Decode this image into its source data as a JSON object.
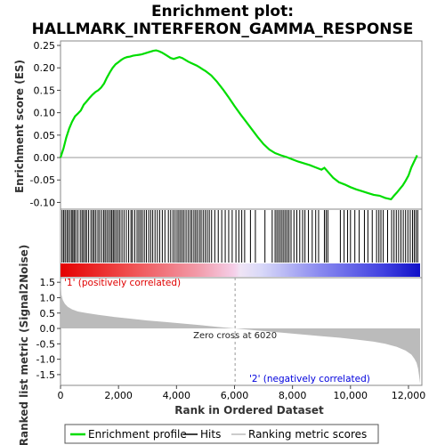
{
  "title_line1": "Enrichment plot:",
  "title_line2": "HALLMARK_INTERFERON_GAMMA_RESPONSE",
  "colors": {
    "es_line": "#00dd00",
    "hits": "#000000",
    "metric_fill": "#bbbbbb",
    "positive": "#e00000",
    "negative": "#0000dd"
  },
  "chart_data": [
    {
      "type": "line",
      "panel": "enrichment",
      "ylabel": "Enrichment score (ES)",
      "xlim": [
        0,
        12400
      ],
      "ylim": [
        -0.115,
        0.26
      ],
      "yticks": [
        "0.25",
        "0.20",
        "0.15",
        "0.10",
        "0.05",
        "0.00",
        "-0.05",
        "-0.10"
      ],
      "ytick_values": [
        0.25,
        0.2,
        0.15,
        0.1,
        0.05,
        0.0,
        -0.05,
        -0.1
      ],
      "series": [
        {
          "x": [
            0,
            100,
            200,
            300,
            400,
            500,
            600,
            700,
            800,
            900,
            1000,
            1100,
            1200,
            1300,
            1400,
            1500,
            1600,
            1700,
            1800,
            1900,
            2000,
            2100,
            2200,
            2300,
            2400,
            2500,
            2600,
            2700,
            2800,
            2900,
            3000,
            3100,
            3200,
            3300,
            3400,
            3500,
            3600,
            3700,
            3800,
            3900,
            4000,
            4100,
            4200,
            4300,
            4400,
            4500,
            4600,
            4700,
            4800,
            4900,
            5000,
            5200,
            5400,
            5600,
            5800,
            6000,
            6200,
            6400,
            6600,
            6800,
            7000,
            7200,
            7400,
            7600,
            7800,
            8000,
            8200,
            8400,
            8600,
            8800,
            9000,
            9100,
            9200,
            9400,
            9600,
            9800,
            10000,
            10200,
            10400,
            10600,
            10800,
            11000,
            11200,
            11400,
            11500,
            11600,
            11700,
            11800,
            11900,
            12000,
            12100,
            12200,
            12300
          ],
          "y": [
            0.0,
            0.02,
            0.045,
            0.065,
            0.08,
            0.092,
            0.098,
            0.105,
            0.118,
            0.125,
            0.133,
            0.14,
            0.146,
            0.15,
            0.156,
            0.165,
            0.178,
            0.19,
            0.2,
            0.208,
            0.213,
            0.218,
            0.222,
            0.224,
            0.225,
            0.227,
            0.228,
            0.229,
            0.23,
            0.232,
            0.234,
            0.236,
            0.238,
            0.239,
            0.237,
            0.234,
            0.23,
            0.226,
            0.222,
            0.22,
            0.222,
            0.224,
            0.222,
            0.218,
            0.214,
            0.211,
            0.208,
            0.205,
            0.201,
            0.197,
            0.193,
            0.183,
            0.169,
            0.152,
            0.134,
            0.115,
            0.097,
            0.08,
            0.063,
            0.046,
            0.03,
            0.018,
            0.01,
            0.005,
            0.001,
            -0.004,
            -0.009,
            -0.013,
            -0.017,
            -0.022,
            -0.027,
            -0.023,
            -0.03,
            -0.045,
            -0.055,
            -0.06,
            -0.066,
            -0.071,
            -0.075,
            -0.079,
            -0.083,
            -0.085,
            -0.09,
            -0.093,
            -0.085,
            -0.078,
            -0.07,
            -0.062,
            -0.052,
            -0.04,
            -0.022,
            -0.008,
            0.005
          ]
        }
      ]
    },
    {
      "type": "scatter",
      "panel": "hits",
      "xlim": [
        0,
        12400
      ],
      "hit_positions": [
        55,
        110,
        160,
        220,
        270,
        330,
        390,
        430,
        480,
        530,
        600,
        680,
        740,
        790,
        850,
        900,
        970,
        1050,
        1110,
        1160,
        1220,
        1290,
        1350,
        1420,
        1490,
        1540,
        1600,
        1660,
        1720,
        1770,
        1820,
        1870,
        1930,
        1990,
        2050,
        2120,
        2190,
        2270,
        2350,
        2430,
        2480,
        2560,
        2640,
        2700,
        2760,
        2820,
        2890,
        2960,
        3040,
        3110,
        3180,
        3260,
        3340,
        3420,
        3510,
        3600,
        3720,
        3800,
        3880,
        3950,
        4020,
        4080,
        4140,
        4200,
        4260,
        4330,
        4400,
        4470,
        4530,
        4600,
        4660,
        4720,
        4790,
        4850,
        4920,
        4990,
        5060,
        5130,
        5210,
        5320,
        5440,
        5560,
        5680,
        5800,
        5920,
        6050,
        6150,
        6250,
        6350,
        6550,
        6720,
        7050,
        7300,
        7400,
        7460,
        7520,
        7580,
        7640,
        7700,
        7760,
        7820,
        7880,
        7950,
        8050,
        8150,
        8250,
        8350,
        8430,
        8550,
        8680,
        8800,
        8900,
        9100,
        9160,
        9220,
        9650,
        9780,
        9900,
        10000,
        10150,
        10300,
        10480,
        10600,
        10750,
        10900,
        10980,
        11050,
        11130,
        11280,
        11420,
        11500,
        11580,
        11660,
        11740,
        11820,
        11900,
        11980,
        12060,
        12140,
        12200,
        12260,
        12320
      ]
    },
    {
      "type": "area",
      "panel": "ranked_metric",
      "ylabel": "Ranked list metric (Signal2Noise)",
      "xlabel": "Rank in Ordered Dataset",
      "xlim": [
        0,
        12400
      ],
      "ylim": [
        -1.85,
        1.65
      ],
      "xticks": [
        "0",
        "2,000",
        "4,000",
        "6,000",
        "8,000",
        "10,000",
        "12,000"
      ],
      "xtick_values": [
        0,
        2000,
        4000,
        6000,
        8000,
        10000,
        12000
      ],
      "yticks": [
        "1.5",
        "1.0",
        "0.5",
        "0.0",
        "-0.5",
        "-1.0",
        "-1.5"
      ],
      "ytick_values": [
        1.5,
        1.0,
        0.5,
        0.0,
        -0.5,
        -1.0,
        -1.5
      ],
      "x": [
        0,
        30,
        80,
        150,
        250,
        400,
        600,
        900,
        1300,
        1800,
        2400,
        3000,
        3600,
        4200,
        4800,
        5400,
        6020,
        6600,
        7200,
        7800,
        8400,
        9000,
        9600,
        10200,
        10800,
        11200,
        11600,
        11900,
        12100,
        12200,
        12280,
        12330,
        12360,
        12400
      ],
      "y": [
        1.58,
        1.1,
        0.92,
        0.8,
        0.7,
        0.62,
        0.55,
        0.5,
        0.44,
        0.38,
        0.32,
        0.26,
        0.21,
        0.16,
        0.11,
        0.05,
        0.0,
        -0.05,
        -0.1,
        -0.15,
        -0.2,
        -0.25,
        -0.3,
        -0.36,
        -0.43,
        -0.5,
        -0.6,
        -0.72,
        -0.85,
        -0.98,
        -1.12,
        -1.3,
        -1.5,
        -1.78
      ],
      "zero_cross": 6020,
      "zero_cross_label": "Zero cross at 6020",
      "pos_label": "'1' (positively correlated)",
      "neg_label": "'2' (negatively correlated)"
    }
  ],
  "legend": {
    "items": [
      {
        "label": "Enrichment profile",
        "color": "#00dd00"
      },
      {
        "label": "Hits",
        "color": "#000000"
      },
      {
        "label": "Ranking metric scores",
        "color": "#bbbbbb"
      }
    ]
  }
}
